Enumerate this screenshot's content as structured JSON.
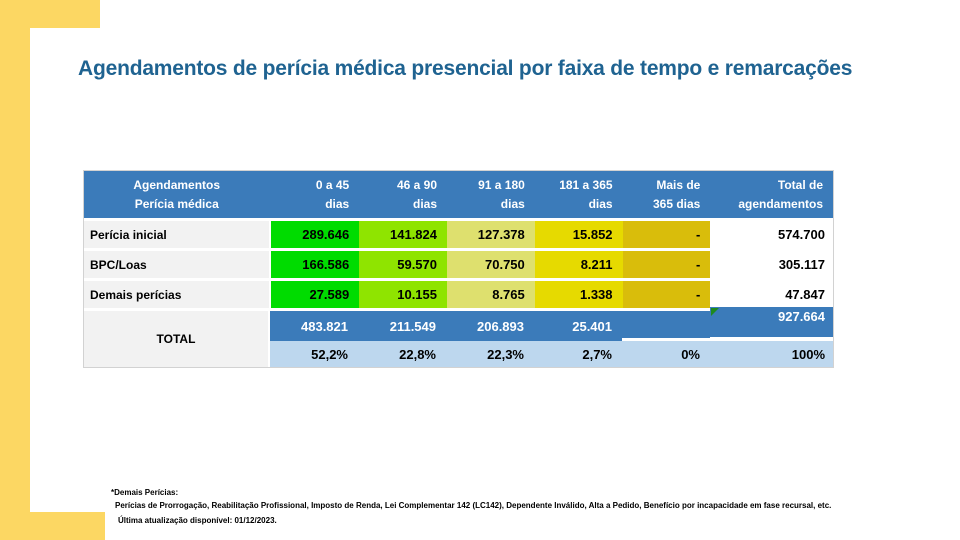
{
  "title": "Agendamentos de perícia médica presencial por faixa de tempo e remarcações",
  "table": {
    "header": {
      "label_line1": "Agendamentos",
      "label_line2": "Perícia médica",
      "columns": [
        {
          "line1": "0 a 45",
          "line2": "dias"
        },
        {
          "line1": "46 a 90",
          "line2": "dias"
        },
        {
          "line1": "91 a 180",
          "line2": "dias"
        },
        {
          "line1": "181 a 365",
          "line2": "dias"
        },
        {
          "line1": "Mais de",
          "line2": "365 dias"
        },
        {
          "line1": "Total de",
          "line2": "agendamentos"
        }
      ]
    },
    "rows": [
      {
        "label": "Perícia inicial",
        "values": [
          "289.646",
          "141.824",
          "127.378",
          "15.852",
          "-",
          "574.700"
        ]
      },
      {
        "label": "BPC/Loas",
        "values": [
          "166.586",
          "59.570",
          "70.750",
          "8.211",
          "-",
          "305.117"
        ]
      },
      {
        "label": "Demais perícias",
        "values": [
          "27.589",
          "10.155",
          "8.765",
          "1.338",
          "-",
          "47.847"
        ]
      }
    ],
    "total": {
      "label": "TOTAL",
      "counts": [
        "483.821",
        "211.549",
        "206.893",
        "25.401",
        "",
        "927.664"
      ],
      "percents": [
        "52,2%",
        "22,8%",
        "22,3%",
        "2,7%",
        "0%",
        "100%"
      ]
    }
  },
  "footnotes": {
    "line1": "*Demais Perícias:",
    "line2": "Perícias de Prorrogação, Reabilitação Profissional, Imposto de Renda, Lei Complementar 142 (LC142), Dependente Inválido, Alta a Pedido, Benefício por incapacidade em fase recursal, etc.",
    "line3": "Última atualização disponível:  01/12/2023."
  },
  "colors": {
    "accent_yellow": "#FCD763",
    "title_blue": "#1F6391",
    "header_blue": "#3B7BBA",
    "percent_row_blue": "#BDD7EE",
    "label_gray": "#F2F2F2",
    "col_0_45_green": "#00DC00",
    "col_46_90_chartreuse": "#8FE400",
    "col_91_180_khaki": "#DEE06E",
    "col_181_365_yellow": "#E6DA00",
    "col_mais_365_gold": "#D9BD0B",
    "comment_triangle_green": "#1E8A1E"
  }
}
